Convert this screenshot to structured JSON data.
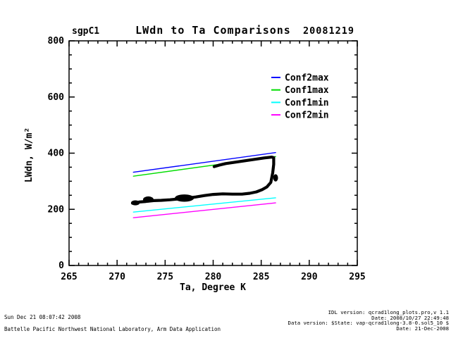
{
  "header": {
    "site": "sgpC1",
    "title": "LWdn to Ta Comparisons",
    "date": "20081219"
  },
  "chart_data": {
    "type": "line",
    "title": "LWdn to Ta Comparisons",
    "xlabel": "Ta, Degree K",
    "ylabel": "LWdn, W/m²",
    "xlim": [
      265,
      295
    ],
    "ylim": [
      0,
      800
    ],
    "x_major_ticks": [
      265,
      270,
      275,
      280,
      285,
      290,
      295
    ],
    "y_major_ticks": [
      0,
      200,
      400,
      600,
      800
    ],
    "x_minor_step": 1,
    "y_minor_step": 50,
    "grid": false,
    "legend_position": "upper-right-inside",
    "legend": {
      "entries": [
        {
          "label": "Conf2max",
          "color": "#0000ff"
        },
        {
          "label": "Conf1max",
          "color": "#00dd00"
        },
        {
          "label": "Conf1min",
          "color": "#00ffff"
        },
        {
          "label": "Conf2min",
          "color": "#ff00ff"
        }
      ]
    },
    "series": [
      {
        "name": "Conf2max",
        "color": "#0000ff",
        "width": 1.4,
        "x": [
          271.7,
          286.5
        ],
        "y": [
          332,
          402
        ]
      },
      {
        "name": "Conf1max",
        "color": "#00dd00",
        "width": 1.4,
        "x": [
          271.7,
          286.5
        ],
        "y": [
          318,
          388
        ]
      },
      {
        "name": "Conf1min",
        "color": "#00ffff",
        "width": 1.4,
        "x": [
          271.7,
          286.5
        ],
        "y": [
          190,
          241
        ]
      },
      {
        "name": "Conf2min",
        "color": "#ff00ff",
        "width": 1.4,
        "x": [
          271.7,
          286.5
        ],
        "y": [
          170,
          223
        ]
      },
      {
        "name": "LWdn-data-trace",
        "color": "#000000",
        "width": 4.2,
        "x": [
          271.6,
          272.3,
          273.0,
          273.8,
          274.6,
          275.5,
          276.4,
          277.3,
          278.2,
          279.1,
          280.0,
          281.0,
          282.0,
          283.0,
          283.8,
          284.5,
          285.1,
          285.6,
          286.0,
          286.2,
          286.3,
          286.3,
          286.1,
          285.3,
          284.3,
          283.3,
          282.3,
          281.3,
          280.6,
          280.1
        ],
        "y": [
          222,
          226,
          228,
          231,
          232,
          234,
          237,
          240,
          244,
          249,
          253,
          255,
          254,
          254,
          257,
          262,
          270,
          280,
          296,
          330,
          360,
          384,
          386,
          383,
          378,
          373,
          368,
          363,
          357,
          352
        ]
      }
    ],
    "blobs": [
      {
        "x": 271.9,
        "y": 223,
        "rx": 0.45,
        "ry": 9
      },
      {
        "x": 273.25,
        "y": 235,
        "rx": 0.55,
        "ry": 11
      },
      {
        "x": 277.0,
        "y": 240,
        "rx": 1.0,
        "ry": 13
      },
      {
        "x": 286.5,
        "y": 312,
        "rx": 0.25,
        "ry": 13
      }
    ]
  },
  "footer": {
    "left": [
      "Sun Dec 21 08:07:42 2008",
      "Battelle Pacific Northwest National Laboratory, Arm Data Application"
    ],
    "right": [
      "IDL version: qcrad1long_plots.pro,v 1.1",
      "Date: 2008/10/27 22:49:48",
      "Data version: $State: vap-qcrad1long-3.8-0.sol5_10 $",
      "Date: 21-Dec-2008"
    ]
  }
}
